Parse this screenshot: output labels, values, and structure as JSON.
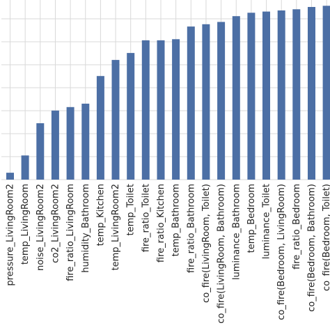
{
  "chart_data": {
    "type": "bar",
    "categories": [
      "pressure_LivingRoom2",
      "temp_LivingRoom",
      "noise_LivingRoom2",
      "co2_LivingRoom2",
      "fire_ratio_LivingRoom",
      "humidity_Bathroom",
      "temp_Kitchen",
      "temp_LivingRoom2",
      "temp_Toilet",
      "fire_ratio_Toilet",
      "fire_ratio_Kitchen",
      "temp_Bathroom",
      "fire_ratio_Bathroom",
      "co_fire(LivingRoom, Toilet)",
      "co_fire(LivingRoom, Bathroom)",
      "luminance_Bathroom",
      "temp_Bedroom",
      "luminance_Toilet",
      "co_fire(Bedroom, LivingRoom)",
      "fire_ratio_Bedroom",
      "co_fire(Bedroom, Bathroom)",
      "co_fire(Bedroom, Toilet)"
    ],
    "values": [
      0.6,
      2.1,
      4.9,
      6.0,
      6.3,
      6.6,
      9.0,
      10.4,
      11.0,
      12.1,
      12.1,
      12.2,
      13.3,
      13.5,
      13.7,
      14.2,
      14.5,
      14.6,
      14.7,
      14.8,
      15.0,
      15.1
    ],
    "ylim": [
      0,
      15.0
    ],
    "grid": true,
    "bar_color": "#4c6fa5",
    "grid_color": "#d9d9d9"
  }
}
